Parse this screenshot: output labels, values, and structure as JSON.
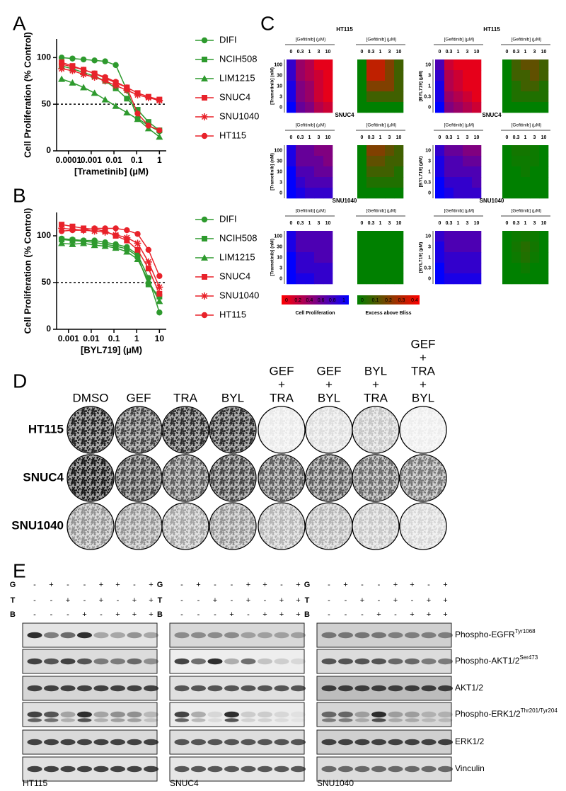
{
  "panel_labels": [
    "A",
    "B",
    "C",
    "D",
    "E"
  ],
  "chart_data": [
    {
      "type": "line",
      "xscale": "log",
      "x": [
        5e-05,
        0.00015,
        0.00046,
        0.0014,
        0.0041,
        0.012,
        0.037,
        0.11,
        0.33,
        1
      ],
      "xlim": [
        3e-05,
        2
      ],
      "xticks": [
        0.0001,
        0.001,
        0.01,
        0.1,
        1
      ],
      "ylim": [
        0,
        120
      ],
      "yticks": [
        0,
        50,
        100
      ],
      "x_label": "[Trametinib] (µM)",
      "y_label": "Cell Proliferation (% Control)",
      "reference_line": 50,
      "series": [
        {
          "name": "DIFI",
          "color": "#2e9a2e",
          "marker": "circle",
          "values": [
            100,
            99,
            98,
            97,
            96,
            92,
            65,
            35,
            27,
            21
          ]
        },
        {
          "name": "NCIH508",
          "color": "#2e9a2e",
          "marker": "square",
          "values": [
            91,
            88,
            84,
            80,
            75,
            67,
            56,
            44,
            31,
            22
          ]
        },
        {
          "name": "LIM1215",
          "color": "#2e9a2e",
          "marker": "triangle",
          "values": [
            77,
            73,
            68,
            62,
            55,
            48,
            41,
            34,
            24,
            15
          ]
        },
        {
          "name": "SNUC4",
          "color": "#e8222a",
          "marker": "square",
          "values": [
            95,
            91,
            87,
            83,
            78,
            73,
            68,
            62,
            58,
            55
          ]
        },
        {
          "name": "SNU1040",
          "color": "#e8222a",
          "marker": "star",
          "values": [
            88,
            86,
            82,
            79,
            75,
            70,
            65,
            60,
            57,
            54
          ]
        },
        {
          "name": "HT115",
          "color": "#e8222a",
          "marker": "circle",
          "values": [
            93,
            90,
            87,
            83,
            79,
            74,
            68,
            40,
            27,
            22
          ]
        }
      ]
    },
    {
      "type": "line",
      "xscale": "log",
      "x": [
        0.0005,
        0.0015,
        0.0046,
        0.014,
        0.041,
        0.12,
        0.37,
        1.1,
        3.3,
        10
      ],
      "xlim": [
        0.0003,
        20
      ],
      "xticks": [
        0.001,
        0.01,
        0.1,
        1,
        10
      ],
      "ylim": [
        0,
        125
      ],
      "yticks": [
        0,
        50,
        100
      ],
      "x_label": "[BYL719] (µM)",
      "y_label": "Cell Proliferation (% Control)",
      "reference_line": 50,
      "series": [
        {
          "name": "DIFI",
          "color": "#2e9a2e",
          "marker": "circle",
          "values": [
            97,
            96,
            95,
            95,
            93,
            91,
            88,
            80,
            55,
            18
          ]
        },
        {
          "name": "NCIH508",
          "color": "#2e9a2e",
          "marker": "square",
          "values": [
            96,
            95,
            94,
            93,
            91,
            89,
            86,
            78,
            48,
            35
          ]
        },
        {
          "name": "LIM1215",
          "color": "#2e9a2e",
          "marker": "triangle",
          "values": [
            92,
            91,
            92,
            90,
            89,
            87,
            83,
            75,
            52,
            30
          ]
        },
        {
          "name": "SNUC4",
          "color": "#e8222a",
          "marker": "square",
          "values": [
            112,
            110,
            108,
            107,
            105,
            100,
            95,
            85,
            65,
            38
          ]
        },
        {
          "name": "SNU1040",
          "color": "#e8222a",
          "marker": "star",
          "values": [
            108,
            107,
            106,
            105,
            104,
            101,
            98,
            92,
            72,
            45
          ]
        },
        {
          "name": "HT115",
          "color": "#e8222a",
          "marker": "circle",
          "values": [
            105,
            106,
            106,
            108,
            108,
            108,
            106,
            102,
            85,
            57
          ]
        }
      ]
    }
  ],
  "heatmaps": {
    "x_label": "[Gefitinib] (µM)",
    "x_categories": [
      "0",
      "0.3",
      "1",
      "3",
      "10"
    ],
    "colorbars": [
      {
        "title": "Cell Proliferation",
        "ticks": [
          0,
          0.2,
          0.4,
          0.6,
          0.8,
          1
        ],
        "colors": [
          "#ff0000",
          "#0000ff"
        ]
      },
      {
        "title": "Excess above Bliss",
        "ticks": [
          0,
          0.1,
          0.2,
          0.3,
          0.4
        ],
        "colors": [
          "#008000",
          "#ff0000"
        ]
      }
    ],
    "groups": [
      {
        "title": "HT115",
        "y_label": "[Trametinib] (nM)",
        "y_categories": [
          "100",
          "30",
          "10",
          "3",
          "0"
        ],
        "proliferation": [
          [
            0.8,
            0.4,
            0.3,
            0.1,
            0.1
          ],
          [
            0.8,
            0.4,
            0.3,
            0.2,
            0.1
          ],
          [
            0.9,
            0.5,
            0.4,
            0.2,
            0.1
          ],
          [
            0.9,
            0.5,
            0.4,
            0.2,
            0.1
          ],
          [
            1,
            0.6,
            0.5,
            0.3,
            0.2
          ]
        ],
        "bliss": [
          [
            0,
            0.3,
            0.3,
            0.2,
            0.1
          ],
          [
            0,
            0.3,
            0.3,
            0.2,
            0.1
          ],
          [
            0,
            0.2,
            0.2,
            0.2,
            0.1
          ],
          [
            0,
            0.1,
            0.1,
            0.1,
            0.1
          ],
          [
            0,
            0,
            0,
            0,
            0
          ]
        ]
      },
      {
        "title": "HT115",
        "y_label": "[BYL719] (µM)",
        "y_categories": [
          "10",
          "3",
          "1",
          "0.3",
          "0"
        ],
        "proliferation": [
          [
            0.7,
            0.2,
            0.1,
            0.1,
            0.1
          ],
          [
            0.8,
            0.3,
            0.2,
            0.1,
            0.1
          ],
          [
            0.9,
            0.3,
            0.2,
            0.1,
            0.1
          ],
          [
            0.9,
            0.4,
            0.3,
            0.2,
            0.1
          ],
          [
            1,
            0.5,
            0.4,
            0.3,
            0.2
          ]
        ],
        "bliss": [
          [
            0,
            0.1,
            0.15,
            0.15,
            0.1
          ],
          [
            0,
            0.1,
            0.1,
            0.15,
            0.1
          ],
          [
            0,
            0.05,
            0.1,
            0.1,
            0.05
          ],
          [
            0,
            0.05,
            0.05,
            0.05,
            0.05
          ],
          [
            0,
            0,
            0,
            0,
            0
          ]
        ]
      },
      {
        "title": "SNUC4",
        "y_label": "[Trametinib] (nM)",
        "y_categories": [
          "100",
          "30",
          "10",
          "3",
          "0"
        ],
        "proliferation": [
          [
            0.9,
            0.6,
            0.6,
            0.5,
            0.5
          ],
          [
            0.9,
            0.6,
            0.6,
            0.6,
            0.5
          ],
          [
            1,
            0.7,
            0.7,
            0.6,
            0.6
          ],
          [
            1,
            0.8,
            0.7,
            0.7,
            0.7
          ],
          [
            1,
            0.9,
            0.8,
            0.8,
            0.8
          ]
        ],
        "bliss": [
          [
            0,
            0.2,
            0.2,
            0.15,
            0.1
          ],
          [
            0,
            0.15,
            0.15,
            0.1,
            0.1
          ],
          [
            0,
            0.1,
            0.1,
            0.1,
            0.05
          ],
          [
            0,
            0.05,
            0.05,
            0.05,
            0.05
          ],
          [
            0,
            0,
            0,
            0,
            0
          ]
        ]
      },
      {
        "title": "SNUC4",
        "y_label": "[BYL719] (µM)",
        "y_categories": [
          "10",
          "3",
          "1",
          "0.3",
          "0"
        ],
        "proliferation": [
          [
            0.8,
            0.6,
            0.6,
            0.5,
            0.5
          ],
          [
            0.9,
            0.7,
            0.7,
            0.6,
            0.6
          ],
          [
            0.9,
            0.7,
            0.7,
            0.7,
            0.7
          ],
          [
            1,
            0.8,
            0.8,
            0.8,
            0.7
          ],
          [
            1,
            0.9,
            0.8,
            0.8,
            0.8
          ]
        ],
        "bliss": [
          [
            0,
            0.03,
            0.03,
            0.02,
            0
          ],
          [
            0,
            0.02,
            0.02,
            0.02,
            0
          ],
          [
            0,
            0,
            0.02,
            0,
            0
          ],
          [
            0,
            0,
            0,
            0,
            0
          ],
          [
            0,
            0,
            0,
            0,
            0
          ]
        ]
      },
      {
        "title": "SNU1040",
        "y_label": "[Trametinib] (nM)",
        "y_categories": [
          "100",
          "30",
          "10",
          "3",
          "0"
        ],
        "proliferation": [
          [
            0.9,
            0.7,
            0.7,
            0.7,
            0.7
          ],
          [
            0.9,
            0.7,
            0.7,
            0.7,
            0.7
          ],
          [
            1,
            0.8,
            0.8,
            0.7,
            0.7
          ],
          [
            1,
            0.8,
            0.8,
            0.8,
            0.8
          ],
          [
            1,
            0.9,
            0.9,
            0.8,
            0.8
          ]
        ],
        "bliss": [
          [
            0,
            0,
            0,
            0,
            0
          ],
          [
            0,
            0,
            0,
            0,
            0
          ],
          [
            0,
            0,
            0,
            0,
            0
          ],
          [
            0,
            0,
            0,
            0,
            0
          ],
          [
            0,
            0,
            0,
            0,
            0
          ]
        ]
      },
      {
        "title": "SNU1040",
        "y_label": "[BYL719] (µM)",
        "y_categories": [
          "10",
          "3",
          "1",
          "0.3",
          "0"
        ],
        "proliferation": [
          [
            0.8,
            0.7,
            0.7,
            0.7,
            0.7
          ],
          [
            0.9,
            0.7,
            0.7,
            0.7,
            0.7
          ],
          [
            0.9,
            0.8,
            0.8,
            0.8,
            0.8
          ],
          [
            1,
            0.8,
            0.8,
            0.8,
            0.8
          ],
          [
            1,
            0.9,
            0.9,
            0.9,
            0.9
          ]
        ],
        "bliss": [
          [
            0,
            0.02,
            0.03,
            0.02,
            0
          ],
          [
            0,
            0.03,
            0.06,
            0.03,
            0
          ],
          [
            0,
            0.02,
            0.05,
            0.02,
            0
          ],
          [
            0,
            0,
            0.02,
            0,
            0
          ],
          [
            0,
            0,
            0,
            0,
            0
          ]
        ]
      }
    ]
  },
  "colony_assay": {
    "conditions": [
      [
        "DMSO"
      ],
      [
        "GEF"
      ],
      [
        "TRA"
      ],
      [
        "BYL"
      ],
      [
        "GEF",
        "+",
        "TRA"
      ],
      [
        "GEF",
        "+",
        "BYL"
      ],
      [
        "BYL",
        "+",
        "TRA"
      ],
      [
        "GEF",
        "+",
        "TRA",
        "+",
        "BYL"
      ]
    ],
    "cell_lines": [
      "HT115",
      "SNUC4",
      "SNU1040"
    ]
  },
  "western_blot": {
    "treatments": [
      {
        "label": "G",
        "signs": [
          "-",
          "+",
          "-",
          "-",
          "+",
          "+",
          "-",
          "+"
        ]
      },
      {
        "label": "T",
        "signs": [
          "-",
          "-",
          "+",
          "-",
          "+",
          "-",
          "+",
          "+"
        ]
      },
      {
        "label": "B",
        "signs": [
          "-",
          "-",
          "-",
          "+",
          "-",
          "+",
          "+",
          "+"
        ]
      }
    ],
    "proteins": [
      {
        "name": "Phospho-EGFR",
        "site": "Tyr1068"
      },
      {
        "name": "Phospho-AKT1/2",
        "site": "Ser473"
      },
      {
        "name": "AKT1/2"
      },
      {
        "name": "Phospho-ERK1/2",
        "site": "Thr201/Tyr204"
      },
      {
        "name": "ERK1/2"
      },
      {
        "name": "Vinculin"
      }
    ],
    "cell_lines": [
      "HT115",
      "SNUC4",
      "SNU1040"
    ]
  }
}
